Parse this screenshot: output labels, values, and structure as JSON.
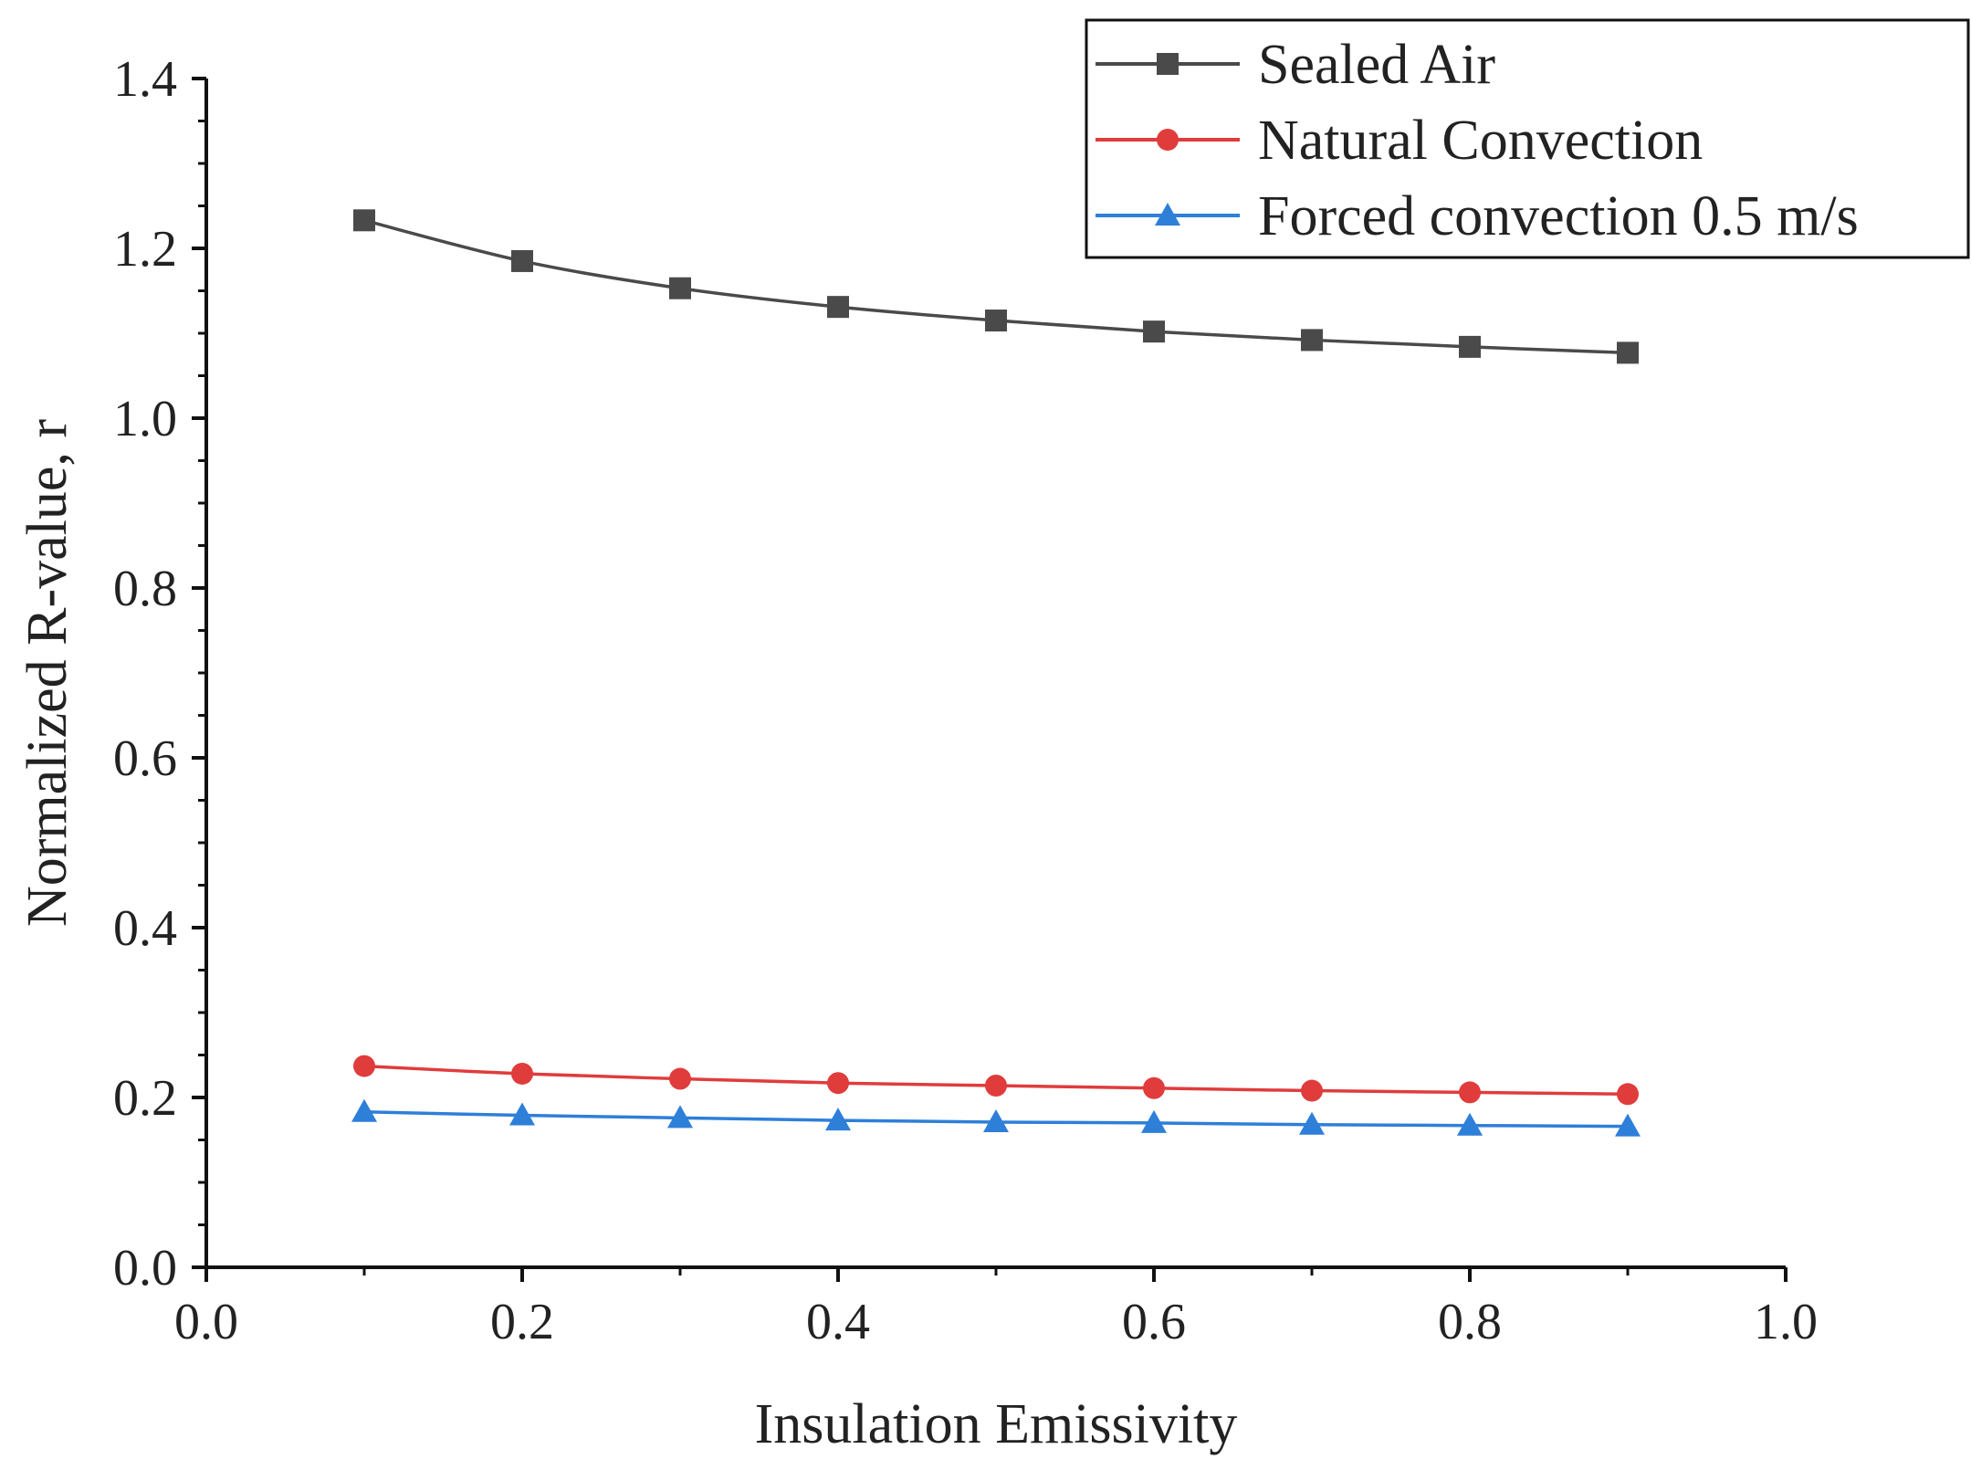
{
  "chart_data": {
    "type": "line",
    "title": "",
    "xlabel": "Insulation Emissivity",
    "ylabel": "Normalized R-value, r",
    "xlim": [
      0.0,
      1.0
    ],
    "ylim": [
      0.0,
      1.4
    ],
    "xticks": [
      0.0,
      0.2,
      0.4,
      0.6,
      0.8,
      1.0
    ],
    "yticks": [
      0.0,
      0.2,
      0.4,
      0.6,
      0.8,
      1.0,
      1.2,
      1.4
    ],
    "xtick_labels": [
      "0.0",
      "0.2",
      "0.4",
      "0.6",
      "0.8",
      "1.0"
    ],
    "ytick_labels": [
      "0.0",
      "0.2",
      "0.4",
      "0.6",
      "0.8",
      "1.0",
      "1.2",
      "1.4"
    ],
    "grid": false,
    "legend_position": "top-right",
    "x": [
      0.1,
      0.2,
      0.3,
      0.4,
      0.5,
      0.6,
      0.7,
      0.8,
      0.9
    ],
    "series": [
      {
        "name": "Sealed Air",
        "color": "#4a4a4a",
        "marker": "square",
        "values": [
          1.233,
          1.185,
          1.153,
          1.131,
          1.115,
          1.102,
          1.092,
          1.084,
          1.077
        ]
      },
      {
        "name": "Natural Convection",
        "color": "#e03c3c",
        "marker": "circle",
        "values": [
          0.237,
          0.228,
          0.222,
          0.217,
          0.214,
          0.211,
          0.208,
          0.206,
          0.204
        ]
      },
      {
        "name": "Forced convection 0.5 m/s",
        "color": "#2e7fd8",
        "marker": "triangle",
        "values": [
          0.183,
          0.179,
          0.176,
          0.173,
          0.171,
          0.17,
          0.168,
          0.167,
          0.166
        ]
      }
    ]
  }
}
